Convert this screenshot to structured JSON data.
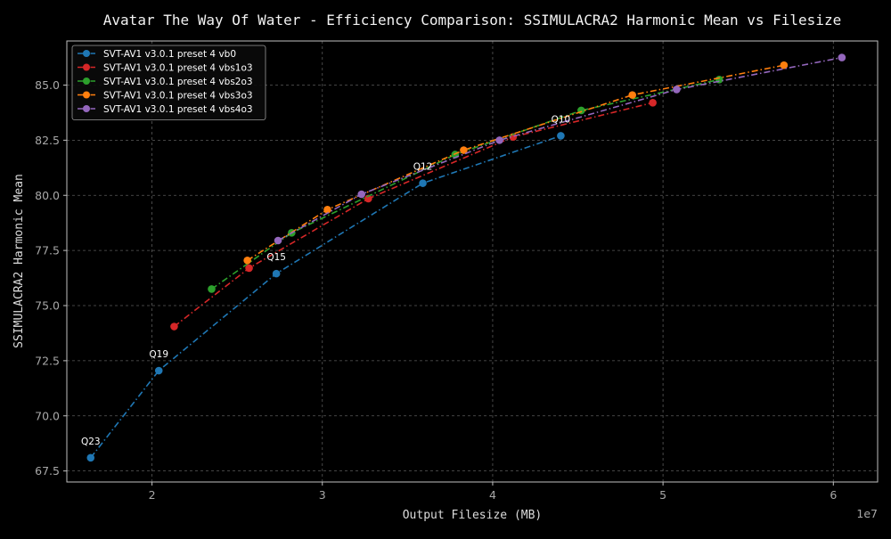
{
  "chart_data": {
    "type": "line",
    "title": "Avatar The Way Of Water - Efficiency Comparison: SSIMULACRA2 Harmonic Mean vs Filesize",
    "xlabel": "Output Filesize (MB)",
    "ylabel": "SSIMULACRA2 Harmonic Mean",
    "x_offset_label": "1e7",
    "xlim": [
      15000000,
      62600000
    ],
    "ylim": [
      67.0,
      87.0
    ],
    "x_ticks": [
      20000000,
      30000000,
      40000000,
      50000000,
      60000000
    ],
    "x_tick_labels": [
      "2",
      "3",
      "4",
      "5",
      "6"
    ],
    "y_ticks": [
      67.5,
      70.0,
      72.5,
      75.0,
      77.5,
      80.0,
      82.5,
      85.0
    ],
    "y_tick_labels": [
      "67.5",
      "70.0",
      "72.5",
      "75.0",
      "77.5",
      "80.0",
      "82.5",
      "85.0"
    ],
    "grid": true,
    "legend_position": "top-left",
    "series": [
      {
        "name": "SVT-AV1 v3.0.1 preset 4 vb0",
        "color": "#1f77b4",
        "x": [
          16400000,
          20400000,
          27300000,
          35900000,
          44000000
        ],
        "y": [
          68.1,
          72.05,
          76.45,
          80.55,
          82.7
        ]
      },
      {
        "name": "SVT-AV1 v3.0.1 preset 4 vbs1o3",
        "color": "#d62728",
        "x": [
          21300000,
          25700000,
          32700000,
          41200000,
          49400000
        ],
        "y": [
          74.05,
          76.7,
          79.85,
          82.65,
          84.2
        ]
      },
      {
        "name": "SVT-AV1 v3.0.1 preset 4 vbs2o3",
        "color": "#2ca02c",
        "x": [
          23500000,
          28200000,
          37800000,
          45200000,
          53300000
        ],
        "y": [
          75.75,
          78.3,
          81.85,
          83.85,
          85.25
        ]
      },
      {
        "name": "SVT-AV1 v3.0.1 preset 4 vbs3o3",
        "color": "#ff7f0e",
        "x": [
          25600000,
          30300000,
          38300000,
          48200000,
          57100000
        ],
        "y": [
          77.05,
          79.35,
          82.05,
          84.55,
          85.9
        ]
      },
      {
        "name": "SVT-AV1 v3.0.1 preset 4 vbs4o3",
        "color": "#9467bd",
        "x": [
          27400000,
          32300000,
          40400000,
          50800000,
          60500000
        ],
        "y": [
          77.95,
          80.05,
          82.5,
          84.8,
          86.25
        ]
      }
    ],
    "annotations": [
      {
        "text": "Q23",
        "x": 16400000,
        "y": 68.1
      },
      {
        "text": "Q19",
        "x": 20400000,
        "y": 72.05
      },
      {
        "text": "Q15",
        "x": 27300000,
        "y": 76.45
      },
      {
        "text": "Q12",
        "x": 35900000,
        "y": 80.55
      },
      {
        "text": "Q10",
        "x": 44000000,
        "y": 82.7
      }
    ]
  }
}
